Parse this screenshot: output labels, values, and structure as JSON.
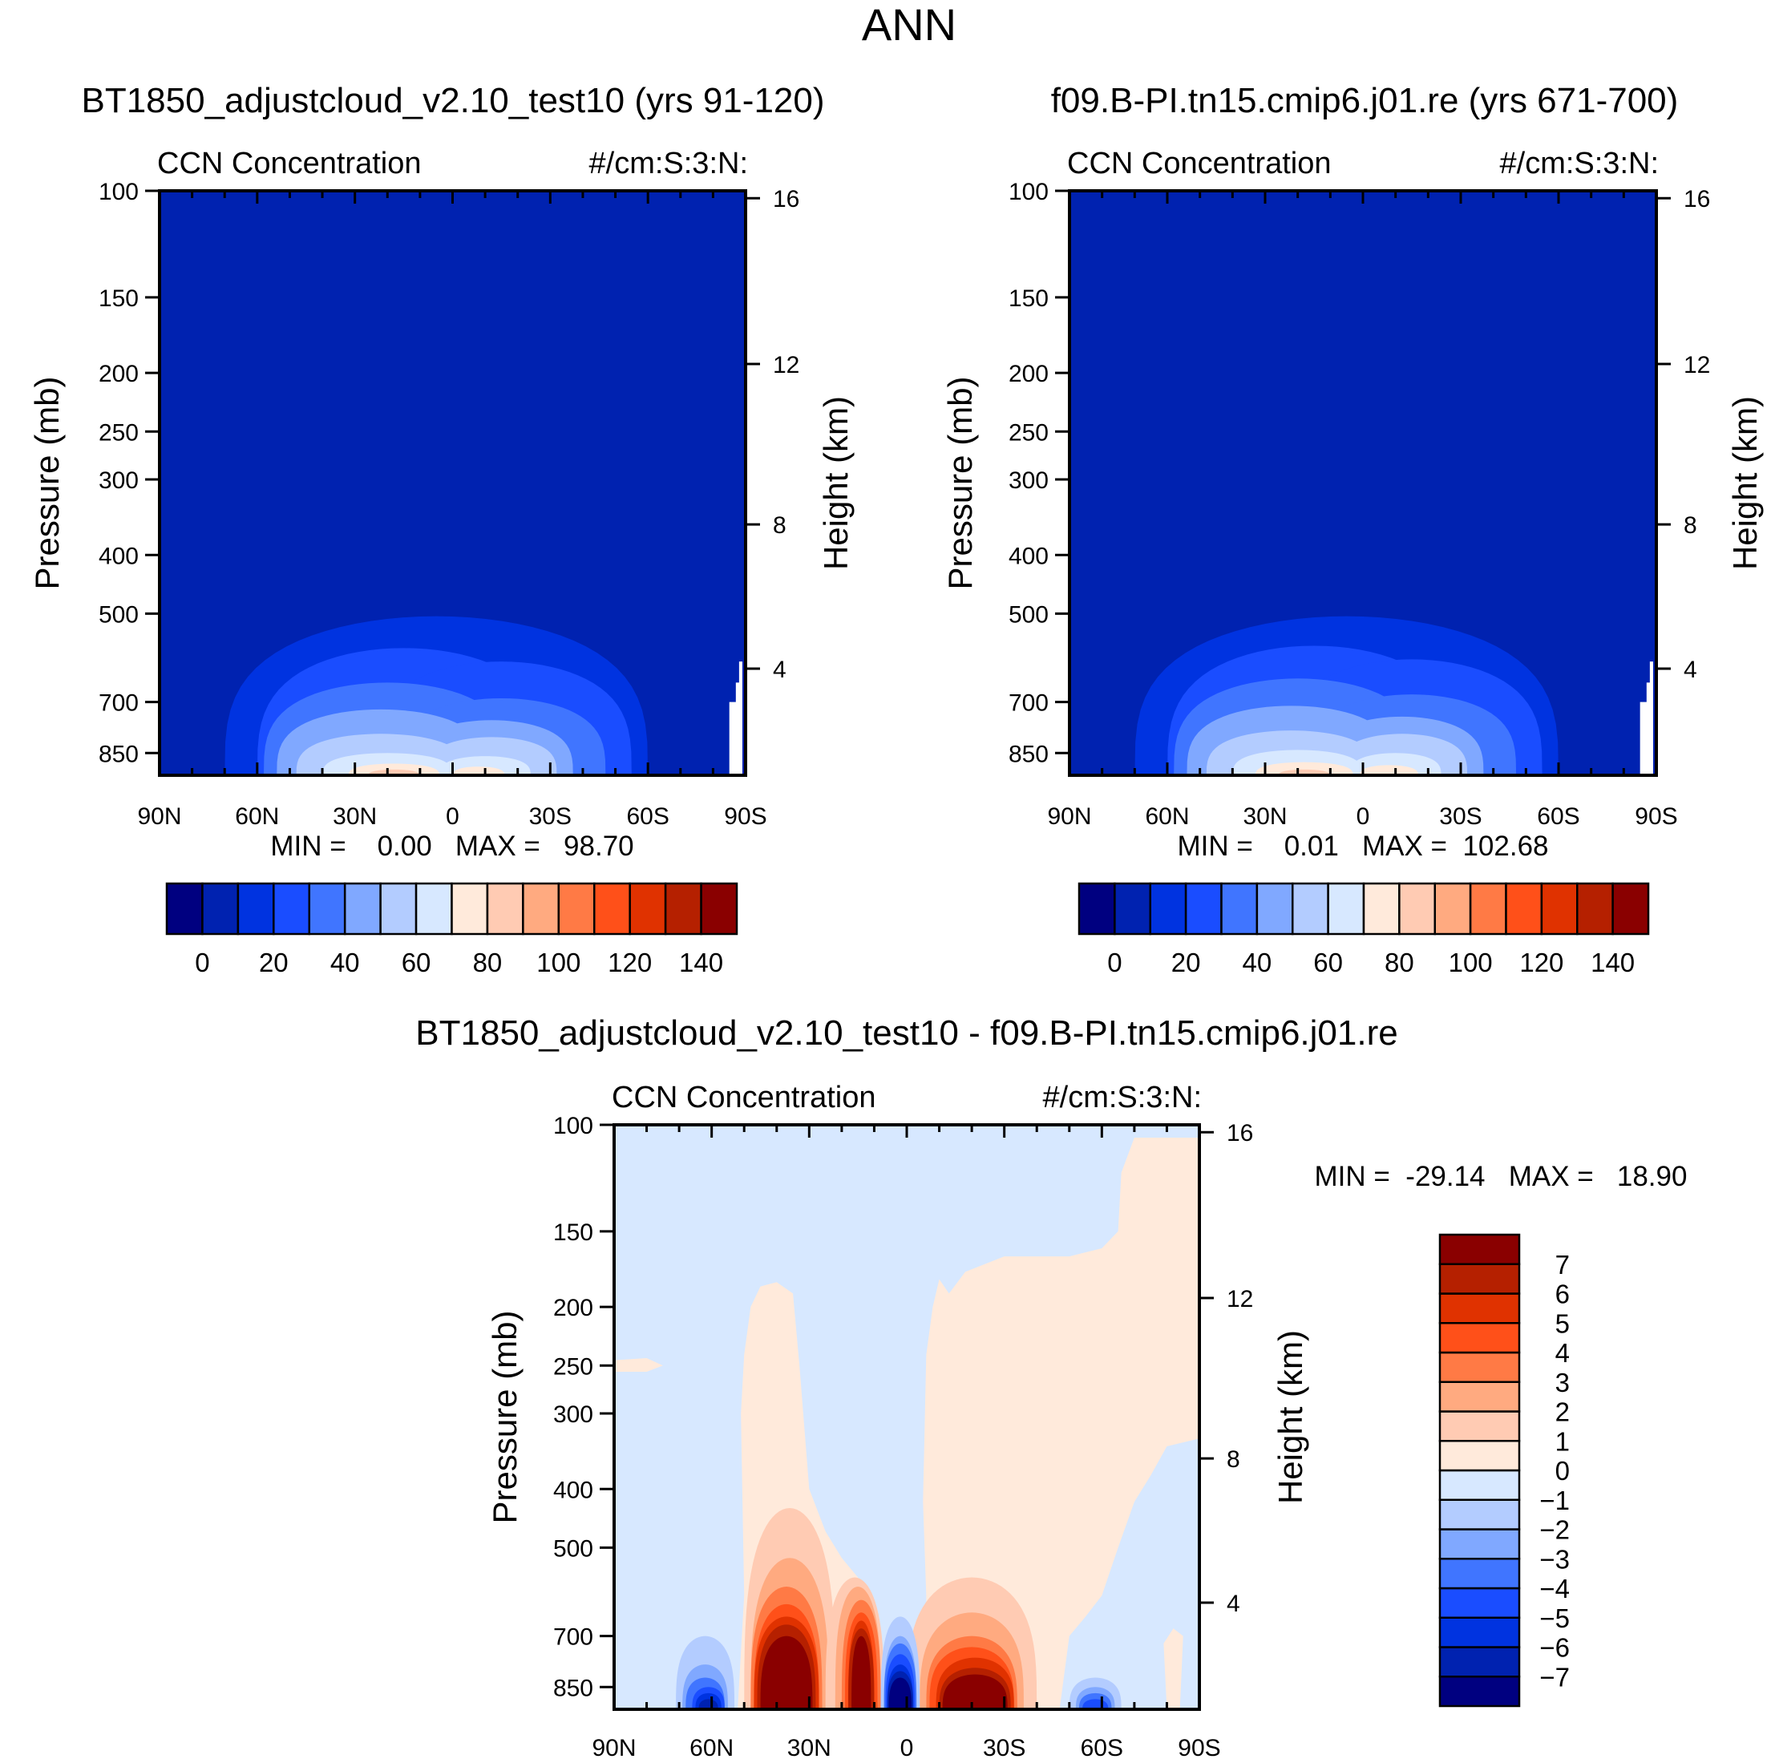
{
  "figure_title": "ANN",
  "colors": [
    "#000080",
    "#0022b0",
    "#0033e0",
    "#1a4dff",
    "#4075ff",
    "#80a8ff",
    "#b3ccff",
    "#d7e8ff",
    "#ffeadb",
    "#ffcbb3",
    "#ffaa80",
    "#ff7a45",
    "#ff5019",
    "#e03200",
    "#b52000",
    "#8a0000"
  ],
  "chart_data": [
    {
      "type": "heatmap",
      "id": "case",
      "title": "BT1850_adjustcloud_v2.10_test10 (yrs 91-120)",
      "left_label": "CCN Concentration",
      "right_label": "#/cm:S:3:N:",
      "xlabel": "",
      "ylabel": "Pressure (mb)",
      "ylabel_right": "Height (km)",
      "x_ticks": [
        "90N",
        "60N",
        "30N",
        "0",
        "30S",
        "60S",
        "90S"
      ],
      "x_tick_values": [
        90,
        60,
        30,
        0,
        -30,
        -60,
        -90
      ],
      "y_ticks": [
        100,
        150,
        200,
        250,
        300,
        400,
        500,
        700,
        850
      ],
      "y_right_ticks": [
        4,
        8,
        12,
        16
      ],
      "ylim": [
        925,
        100
      ],
      "min_max": "MIN =    0.00   MAX =   98.70",
      "background_level": 1,
      "mounds": [
        {
          "level": 2,
          "lat": 5,
          "width": 65,
          "top_p": 505
        },
        {
          "level": 3,
          "lat": 15,
          "width": 45,
          "top_p": 570
        },
        {
          "level": 3,
          "lat": -15,
          "width": 40,
          "top_p": 600
        },
        {
          "level": 4,
          "lat": 20,
          "width": 38,
          "top_p": 650
        },
        {
          "level": 4,
          "lat": -15,
          "width": 32,
          "top_p": 690
        },
        {
          "level": 5,
          "lat": 22,
          "width": 32,
          "top_p": 720
        },
        {
          "level": 5,
          "lat": -12,
          "width": 25,
          "top_p": 750
        },
        {
          "level": 6,
          "lat": 22,
          "width": 26,
          "top_p": 790
        },
        {
          "level": 6,
          "lat": -12,
          "width": 20,
          "top_p": 800
        },
        {
          "level": 7,
          "lat": 20,
          "width": 20,
          "top_p": 850
        },
        {
          "level": 7,
          "lat": -10,
          "width": 14,
          "top_p": 860
        },
        {
          "level": 8,
          "lat": 18,
          "width": 14,
          "top_p": 885
        },
        {
          "level": 8,
          "lat": -8,
          "width": 8,
          "top_p": 895
        },
        {
          "level": 9,
          "lat": 18,
          "width": 8,
          "top_p": 905
        }
      ],
      "missing": [
        [
          -85,
          925
        ],
        [
          -85,
          700
        ],
        [
          -87,
          700
        ],
        [
          -87,
          650
        ],
        [
          -88,
          650
        ],
        [
          -88,
          600
        ],
        [
          -89,
          600
        ],
        [
          -89,
          925
        ]
      ],
      "colorbar": {
        "labels": [
          "0",
          "20",
          "40",
          "60",
          "80",
          "100",
          "120",
          "140"
        ],
        "boundaries": [
          -10,
          0,
          10,
          20,
          30,
          40,
          50,
          60,
          70,
          80,
          90,
          100,
          110,
          120,
          130,
          140
        ]
      }
    },
    {
      "type": "heatmap",
      "id": "control",
      "title": "f09.B-PI.tn15.cmip6.j01.re (yrs 671-700)",
      "left_label": "CCN Concentration",
      "right_label": "#/cm:S:3:N:",
      "xlabel": "",
      "ylabel": "Pressure (mb)",
      "ylabel_right": "Height (km)",
      "x_ticks": [
        "90N",
        "60N",
        "30N",
        "0",
        "30S",
        "60S",
        "90S"
      ],
      "x_tick_values": [
        90,
        60,
        30,
        0,
        -30,
        -60,
        -90
      ],
      "y_ticks": [
        100,
        150,
        200,
        250,
        300,
        400,
        500,
        700,
        850
      ],
      "y_right_ticks": [
        4,
        8,
        12,
        16
      ],
      "ylim": [
        925,
        100
      ],
      "min_max": "MIN =    0.01   MAX =  102.68",
      "background_level": 1,
      "mounds": [
        {
          "level": 2,
          "lat": 5,
          "width": 65,
          "top_p": 505
        },
        {
          "level": 3,
          "lat": 15,
          "width": 45,
          "top_p": 565
        },
        {
          "level": 3,
          "lat": -15,
          "width": 40,
          "top_p": 595
        },
        {
          "level": 4,
          "lat": 20,
          "width": 38,
          "top_p": 640
        },
        {
          "level": 4,
          "lat": -15,
          "width": 32,
          "top_p": 680
        },
        {
          "level": 5,
          "lat": 22,
          "width": 32,
          "top_p": 710
        },
        {
          "level": 5,
          "lat": -12,
          "width": 25,
          "top_p": 740
        },
        {
          "level": 6,
          "lat": 22,
          "width": 26,
          "top_p": 780
        },
        {
          "level": 6,
          "lat": -12,
          "width": 20,
          "top_p": 790
        },
        {
          "level": 7,
          "lat": 20,
          "width": 20,
          "top_p": 840
        },
        {
          "level": 7,
          "lat": -10,
          "width": 14,
          "top_p": 850
        },
        {
          "level": 8,
          "lat": 18,
          "width": 15,
          "top_p": 880
        },
        {
          "level": 8,
          "lat": -8,
          "width": 9,
          "top_p": 890
        },
        {
          "level": 9,
          "lat": 18,
          "width": 8,
          "top_p": 905
        }
      ],
      "missing": [
        [
          -85,
          925
        ],
        [
          -85,
          700
        ],
        [
          -87,
          700
        ],
        [
          -87,
          650
        ],
        [
          -88,
          650
        ],
        [
          -88,
          600
        ],
        [
          -89,
          600
        ],
        [
          -89,
          925
        ]
      ],
      "colorbar": {
        "labels": [
          "0",
          "20",
          "40",
          "60",
          "80",
          "100",
          "120",
          "140"
        ],
        "boundaries": [
          -10,
          0,
          10,
          20,
          30,
          40,
          50,
          60,
          70,
          80,
          90,
          100,
          110,
          120,
          130,
          140
        ]
      }
    },
    {
      "type": "heatmap",
      "id": "difference",
      "title": "BT1850_adjustcloud_v2.10_test10 - f09.B-PI.tn15.cmip6.j01.re",
      "left_label": "CCN Concentration",
      "right_label": "#/cm:S:3:N:",
      "xlabel": "",
      "ylabel": "Pressure (mb)",
      "ylabel_right": "Height (km)",
      "x_ticks": [
        "90N",
        "60N",
        "30N",
        "0",
        "30S",
        "60S",
        "90S"
      ],
      "x_tick_values": [
        90,
        60,
        30,
        0,
        -30,
        -60,
        -90
      ],
      "y_ticks": [
        100,
        150,
        200,
        250,
        300,
        400,
        500,
        700,
        850
      ],
      "y_right_ticks": [
        4,
        8,
        12,
        16
      ],
      "ylim": [
        925,
        100
      ],
      "min_max": "MIN =  -29.14   MAX =   18.90",
      "background_level": 7,
      "polygons": [
        {
          "level": 8,
          "points": [
            [
              52,
              925
            ],
            [
              50,
              600
            ],
            [
              51,
              300
            ],
            [
              50,
              240
            ],
            [
              48,
              200
            ],
            [
              45,
              185
            ],
            [
              40,
              182
            ],
            [
              35,
              190
            ],
            [
              33,
              250
            ],
            [
              30,
              400
            ],
            [
              25,
              470
            ],
            [
              20,
              520
            ],
            [
              15,
              560
            ],
            [
              12,
              650
            ],
            [
              10,
              925
            ]
          ]
        },
        {
          "level": 8,
          "points": [
            [
              -6,
              925
            ],
            [
              -6,
              600
            ],
            [
              -5,
              420
            ],
            [
              -6,
              240
            ],
            [
              -8,
              200
            ],
            [
              -10,
              180
            ],
            [
              -13,
              190
            ],
            [
              -18,
              175
            ],
            [
              -30,
              165
            ],
            [
              -50,
              165
            ],
            [
              -60,
              160
            ],
            [
              -65,
              150
            ],
            [
              -66,
              120
            ],
            [
              -70,
              105
            ],
            [
              -90,
              105
            ],
            [
              -90,
              330
            ],
            [
              -80,
              340
            ],
            [
              -75,
              380
            ],
            [
              -70,
              420
            ],
            [
              -65,
              500
            ],
            [
              -60,
              600
            ],
            [
              -55,
              650
            ],
            [
              -50,
              700
            ],
            [
              -47,
              925
            ]
          ]
        },
        {
          "level": 8,
          "points": [
            [
              90,
              245
            ],
            [
              80,
              243
            ],
            [
              75,
              250
            ],
            [
              80,
              256
            ],
            [
              90,
              256
            ]
          ]
        },
        {
          "level": 8,
          "points": [
            [
              -80,
              925
            ],
            [
              -79,
              720
            ],
            [
              -82,
              680
            ],
            [
              -85,
              700
            ],
            [
              -84,
              925
            ]
          ]
        }
      ],
      "mounds": [
        {
          "level": 9,
          "lat": 36,
          "width": 14,
          "top_p": 430
        },
        {
          "level": 10,
          "lat": 36,
          "width": 12,
          "top_p": 520
        },
        {
          "level": 11,
          "lat": 37,
          "width": 11,
          "top_p": 580
        },
        {
          "level": 12,
          "lat": 37,
          "width": 10,
          "top_p": 620
        },
        {
          "level": 13,
          "lat": 37,
          "width": 10,
          "top_p": 650
        },
        {
          "level": 14,
          "lat": 37,
          "width": 9,
          "top_p": 670
        },
        {
          "level": 15,
          "lat": 37,
          "width": 8,
          "top_p": 700
        },
        {
          "level": 9,
          "lat": 16,
          "width": 9,
          "top_p": 560
        },
        {
          "level": 10,
          "lat": 15,
          "width": 7,
          "top_p": 580
        },
        {
          "level": 11,
          "lat": 14,
          "width": 6,
          "top_p": 610
        },
        {
          "level": 12,
          "lat": 14,
          "width": 5,
          "top_p": 640
        },
        {
          "level": 13,
          "lat": 14,
          "width": 4,
          "top_p": 660
        },
        {
          "level": 14,
          "lat": 14,
          "width": 4,
          "top_p": 680
        },
        {
          "level": 15,
          "lat": 14,
          "width": 3,
          "top_p": 700
        },
        {
          "level": 9,
          "lat": -20,
          "width": 20,
          "top_p": 560
        },
        {
          "level": 10,
          "lat": -20,
          "width": 16,
          "top_p": 640
        },
        {
          "level": 11,
          "lat": -20,
          "width": 14,
          "top_p": 700
        },
        {
          "level": 12,
          "lat": -20,
          "width": 13,
          "top_p": 730
        },
        {
          "level": 13,
          "lat": -21,
          "width": 12,
          "top_p": 760
        },
        {
          "level": 14,
          "lat": -21,
          "width": 11,
          "top_p": 790
        },
        {
          "level": 15,
          "lat": -21,
          "width": 10,
          "top_p": 810
        },
        {
          "level": 6,
          "lat": 2,
          "width": 6,
          "top_p": 650
        },
        {
          "level": 5,
          "lat": 2,
          "width": 5,
          "top_p": 700
        },
        {
          "level": 4,
          "lat": 2,
          "width": 5,
          "top_p": 720
        },
        {
          "level": 3,
          "lat": 2,
          "width": 4.5,
          "top_p": 750
        },
        {
          "level": 2,
          "lat": 2,
          "width": 4,
          "top_p": 780
        },
        {
          "level": 1,
          "lat": 2,
          "width": 4,
          "top_p": 800
        },
        {
          "level": 0,
          "lat": 2,
          "width": 3.5,
          "top_p": 820
        },
        {
          "level": 6,
          "lat": 62,
          "width": 9,
          "top_p": 700
        },
        {
          "level": 5,
          "lat": 62,
          "width": 7,
          "top_p": 780
        },
        {
          "level": 4,
          "lat": 62,
          "width": 6,
          "top_p": 820
        },
        {
          "level": 3,
          "lat": 61,
          "width": 5,
          "top_p": 850
        },
        {
          "level": 2,
          "lat": 61,
          "width": 4,
          "top_p": 870
        },
        {
          "level": 1,
          "lat": 61,
          "width": 3,
          "top_p": 890
        },
        {
          "level": 6,
          "lat": -58,
          "width": 8,
          "top_p": 820
        },
        {
          "level": 5,
          "lat": -58,
          "width": 6,
          "top_p": 850
        },
        {
          "level": 4,
          "lat": -58,
          "width": 5,
          "top_p": 870
        },
        {
          "level": 3,
          "lat": -58,
          "width": 4,
          "top_p": 890
        }
      ],
      "colorbar": {
        "labels": [
          "-7",
          "-6",
          "-5",
          "-4",
          "-3",
          "-2",
          "-1",
          "0",
          "1",
          "2",
          "3",
          "4",
          "5",
          "6",
          "7"
        ],
        "boundaries": [
          -7,
          -6,
          -5,
          -4,
          -3,
          -2,
          -1,
          0,
          1,
          2,
          3,
          4,
          5,
          6,
          7
        ]
      }
    }
  ]
}
